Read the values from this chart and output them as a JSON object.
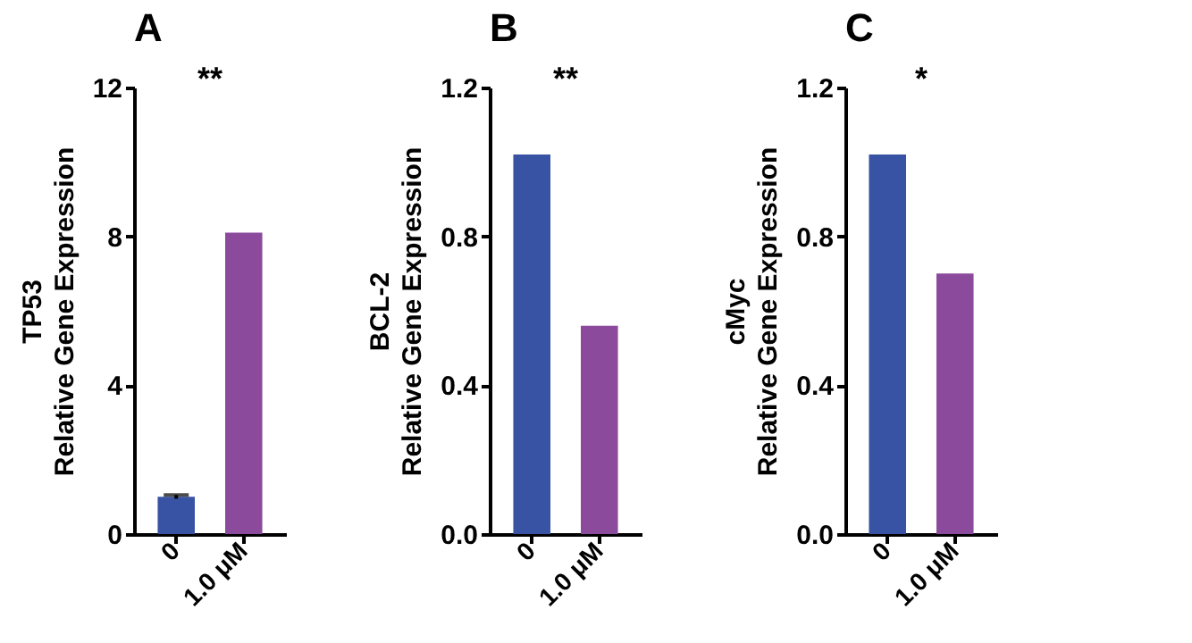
{
  "chart_data": [
    {
      "type": "bar",
      "title": "A",
      "ylabel": "TP53\nRelative Gene Expression",
      "categories": [
        "0",
        "1.0 μM"
      ],
      "values": [
        1.0,
        8.1
      ],
      "errors": [
        0.05,
        null
      ],
      "colors": [
        "#3853a4",
        "#8b4a9c"
      ],
      "ylim": [
        0,
        12
      ],
      "yticks": [
        0,
        4,
        8,
        12
      ],
      "annotations": [
        "**"
      ]
    },
    {
      "type": "bar",
      "title": "B",
      "ylabel": "BCL-2\nRelative Gene Expression",
      "categories": [
        "0",
        "1.0 μM"
      ],
      "values": [
        1.02,
        0.56
      ],
      "colors": [
        "#3853a4",
        "#8b4a9c"
      ],
      "ylim": [
        0,
        1.2
      ],
      "yticks": [
        {
          "value": 0,
          "label": "0.0"
        },
        0.4,
        0.8,
        1.2
      ],
      "annotations": [
        "**"
      ]
    },
    {
      "type": "bar",
      "title": "C",
      "ylabel": "cMyc\nRelative Gene Expression",
      "categories": [
        "0",
        "1.0 μM"
      ],
      "values": [
        1.02,
        0.7
      ],
      "colors": [
        "#3853a4",
        "#8b4a9c"
      ],
      "ylim": [
        0,
        1.2
      ],
      "yticks": [
        {
          "value": 0,
          "label": "0.0"
        },
        0.4,
        0.8,
        1.2
      ],
      "annotations": [
        "*"
      ]
    }
  ]
}
